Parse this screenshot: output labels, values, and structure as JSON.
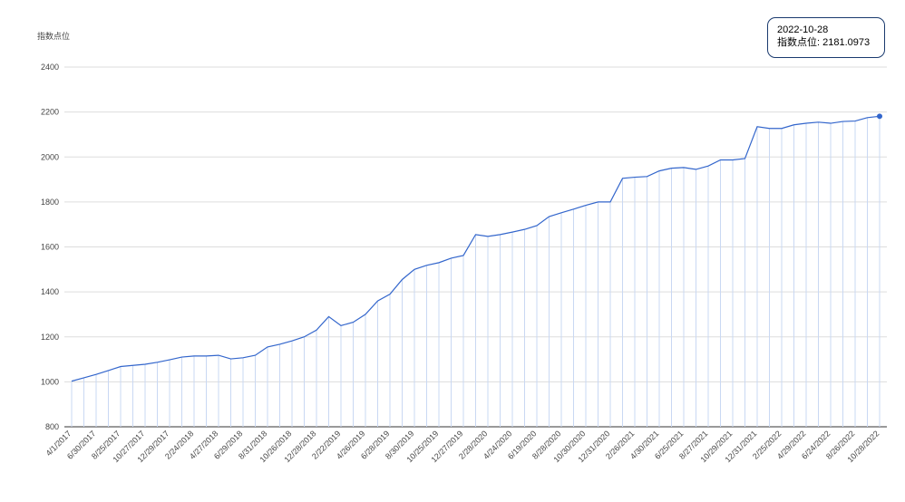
{
  "chart_data": {
    "type": "line",
    "y_label": "指数点位",
    "color": "#3366cc",
    "drop_color": "#c9d8f3",
    "categories": [
      "4/1/2017",
      null,
      "6/30/2017",
      null,
      "8/25/2017",
      null,
      "10/27/2017",
      null,
      "12/29/2017",
      null,
      "2/24/2018",
      null,
      "4/27/2018",
      null,
      "6/29/2018",
      null,
      "8/31/2018",
      null,
      "10/26/2018",
      null,
      "12/28/2018",
      null,
      "2/22/2019",
      null,
      "4/26/2019",
      null,
      "6/28/2019",
      null,
      "8/30/2019",
      null,
      "10/25/2019",
      null,
      "12/27/2019",
      null,
      "2/28/2020",
      null,
      "4/24/2020",
      null,
      "6/19/2020",
      null,
      "8/28/2020",
      null,
      "10/30/2020",
      null,
      "12/31/2020",
      null,
      "2/26/2021",
      null,
      "4/30/2021",
      null,
      "6/25/2021",
      null,
      "8/27/2021",
      null,
      "10/29/2021",
      null,
      "12/31/2021",
      null,
      "2/25/2022",
      null,
      "4/29/2022",
      null,
      "6/24/2022",
      null,
      "8/26/2022",
      null,
      "10/28/2022"
    ],
    "values": [
      1003,
      1018,
      1033,
      1050,
      1068,
      1073,
      1078,
      1087,
      1098,
      1110,
      1115,
      1115,
      1118,
      1102,
      1107,
      1118,
      1155,
      1167,
      1182,
      1200,
      1230,
      1290,
      1250,
      1265,
      1300,
      1360,
      1390,
      1455,
      1500,
      1518,
      1530,
      1550,
      1562,
      1655,
      1647,
      1655,
      1666,
      1678,
      1695,
      1735,
      1752,
      1768,
      1785,
      1800,
      1800,
      1905,
      1910,
      1913,
      1938,
      1950,
      1953,
      1945,
      1960,
      1987,
      1987,
      1993,
      2135,
      2127,
      2127,
      2143,
      2150,
      2155,
      2150,
      2158,
      2160,
      2175,
      2181.0973
    ],
    "ylim": [
      800,
      2400
    ],
    "yticks": [
      800,
      1000,
      1200,
      1400,
      1600,
      1800,
      2000,
      2200,
      2400
    ],
    "grid": true,
    "tooltip": {
      "title": "2022-10-28",
      "text": "指数点位: 2181.0973"
    }
  }
}
